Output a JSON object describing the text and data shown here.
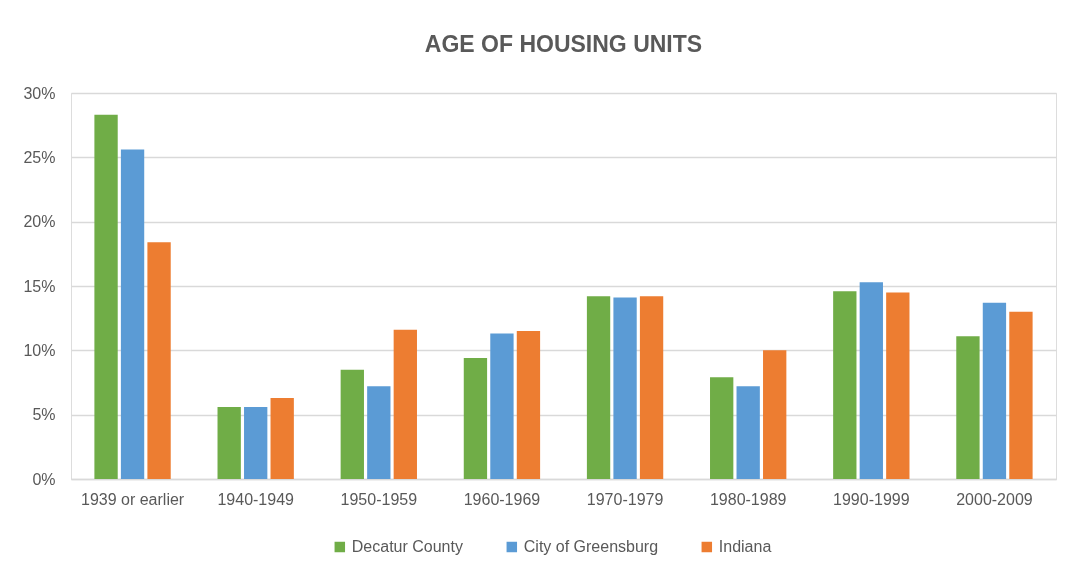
{
  "chart_data": {
    "type": "bar",
    "title": "AGE OF HOUSING UNITS",
    "categories": [
      "1939 or earlier",
      "1940-1949",
      "1950-1959",
      "1960-1969",
      "1970-1979",
      "1980-1989",
      "1990-1999",
      "2000-2009"
    ],
    "series": [
      {
        "name": "Decatur County",
        "color": "#70ad47",
        "values": [
          28.3,
          5.6,
          8.5,
          9.4,
          14.2,
          7.9,
          14.6,
          11.1
        ]
      },
      {
        "name": "City of Greensburg",
        "color": "#5b9bd5",
        "values": [
          25.6,
          5.6,
          7.2,
          11.3,
          14.1,
          7.2,
          15.3,
          13.7
        ]
      },
      {
        "name": "Indiana",
        "color": "#ed7d31",
        "values": [
          18.4,
          6.3,
          11.6,
          11.5,
          14.2,
          10.0,
          14.5,
          13.0
        ]
      }
    ],
    "ylim": [
      0,
      30
    ],
    "yticks": [
      {
        "value": 0,
        "label": "0%"
      },
      {
        "value": 5,
        "label": "5%"
      },
      {
        "value": 10,
        "label": "10%"
      },
      {
        "value": 15,
        "label": "15%"
      },
      {
        "value": 20,
        "label": "20%"
      },
      {
        "value": 25,
        "label": "25%"
      },
      {
        "value": 30,
        "label": "30%"
      }
    ],
    "grid": "y",
    "legend": "bottom"
  }
}
